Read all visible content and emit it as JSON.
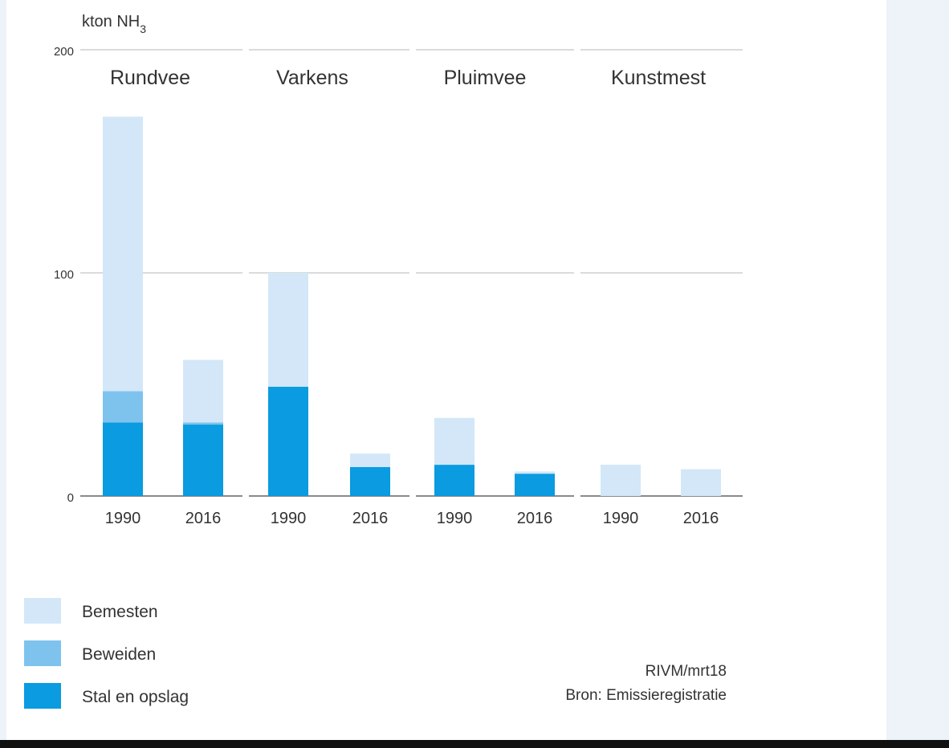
{
  "chart_data": {
    "type": "bar",
    "stacked": true,
    "ylabel": "kton NH",
    "ylabel_subscript": "3",
    "ylim": [
      0,
      200
    ],
    "yticks": [
      "0",
      "100",
      "200"
    ],
    "groups": [
      "Rundvee",
      "Varkens",
      "Pluimvee",
      "Kunstmest"
    ],
    "categories": [
      "1990",
      "2016",
      "1990",
      "2016",
      "1990",
      "2016",
      "1990",
      "2016"
    ],
    "series": [
      {
        "name": "Stal en opslag",
        "color": "#0a9be0",
        "values": [
          33,
          32,
          49,
          13,
          14,
          10,
          0,
          0
        ]
      },
      {
        "name": "Beweiden",
        "color": "#7ec3ee",
        "values": [
          14,
          1,
          0,
          0,
          0,
          0,
          0,
          0
        ]
      },
      {
        "name": "Bemesten",
        "color": "#d3e7f8",
        "values": [
          123,
          28,
          51,
          6,
          21,
          1,
          14,
          12
        ]
      }
    ],
    "grid": true,
    "legend_position": "bottom-left",
    "source_line1": "RIVM/mrt18",
    "source_line2": "Bron: Emissieregistratie"
  }
}
